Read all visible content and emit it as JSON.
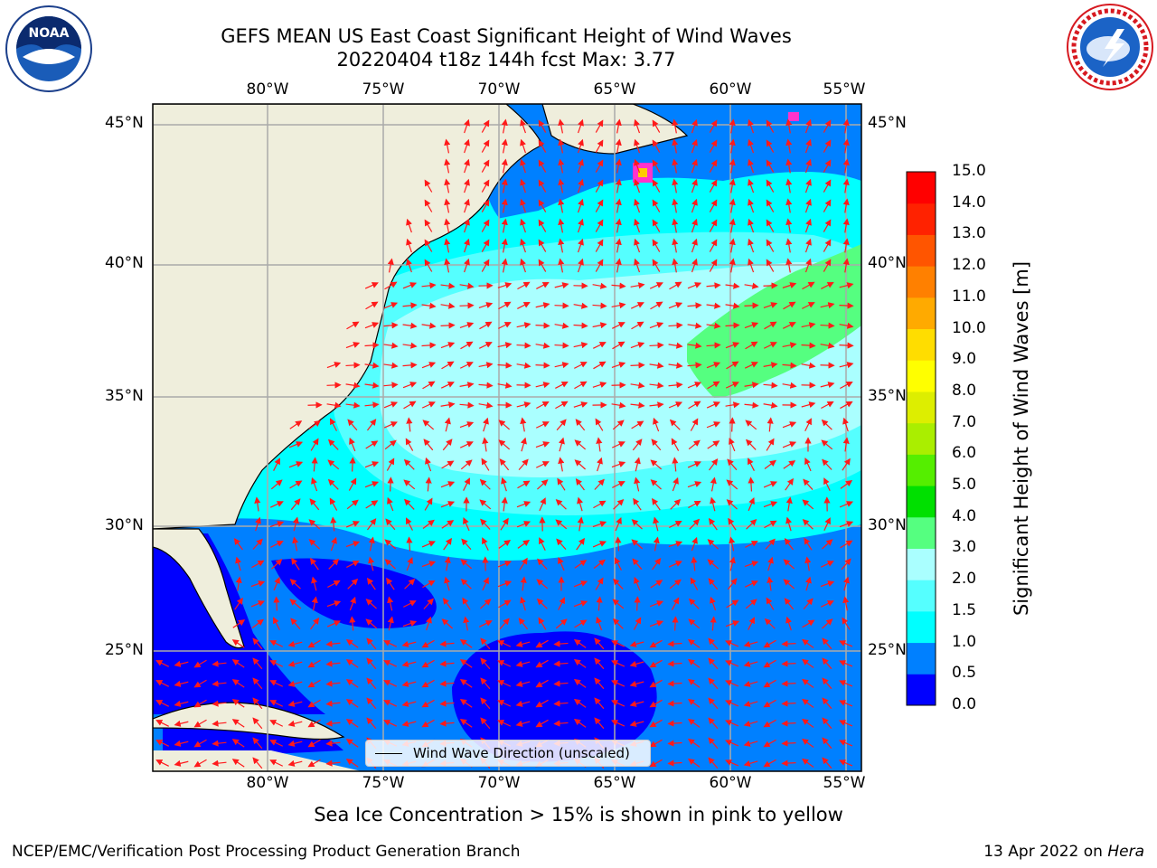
{
  "header": {
    "title_line1": "GEFS MEAN US East Coast Significant Height of Wind Waves",
    "title_line2": "20220404 t18z 144h fcst   Max: 3.77"
  },
  "logos": {
    "left": "NOAA",
    "right": "NATIONAL WEATHER SERVICE"
  },
  "map": {
    "lon_labels": [
      "80°W",
      "75°W",
      "70°W",
      "65°W",
      "60°W",
      "55°W"
    ],
    "lat_labels": [
      "45°N",
      "40°N",
      "35°N",
      "30°N",
      "25°N"
    ],
    "legend_label": "Wind Wave Direction (unscaled)"
  },
  "colorbar": {
    "label": "Significant Height of Wind Waves [m]",
    "ticks": [
      "15.0",
      "14.0",
      "13.0",
      "12.0",
      "11.0",
      "10.0",
      "9.0",
      "8.0",
      "7.0",
      "6.0",
      "5.0",
      "4.0",
      "3.0",
      "2.0",
      "1.5",
      "1.0",
      "0.5",
      "0.0"
    ],
    "colors": [
      "#0000ff",
      "#0080ff",
      "#00ffff",
      "#55ffff",
      "#aaffff",
      "#55ff80",
      "#00e000",
      "#55ee00",
      "#aaee00",
      "#ddee00",
      "#ffff00",
      "#ffdd00",
      "#ffaa00",
      "#ff8000",
      "#ff5500",
      "#ff2200",
      "#ff0000"
    ]
  },
  "caption": "Sea Ice Concentration > 15% is shown in pink to yellow",
  "footer": {
    "left": "NCEP/EMC/Verification Post Processing Product Generation Branch",
    "right_date": "13 Apr 2022 on ",
    "right_host": "Hera"
  }
}
